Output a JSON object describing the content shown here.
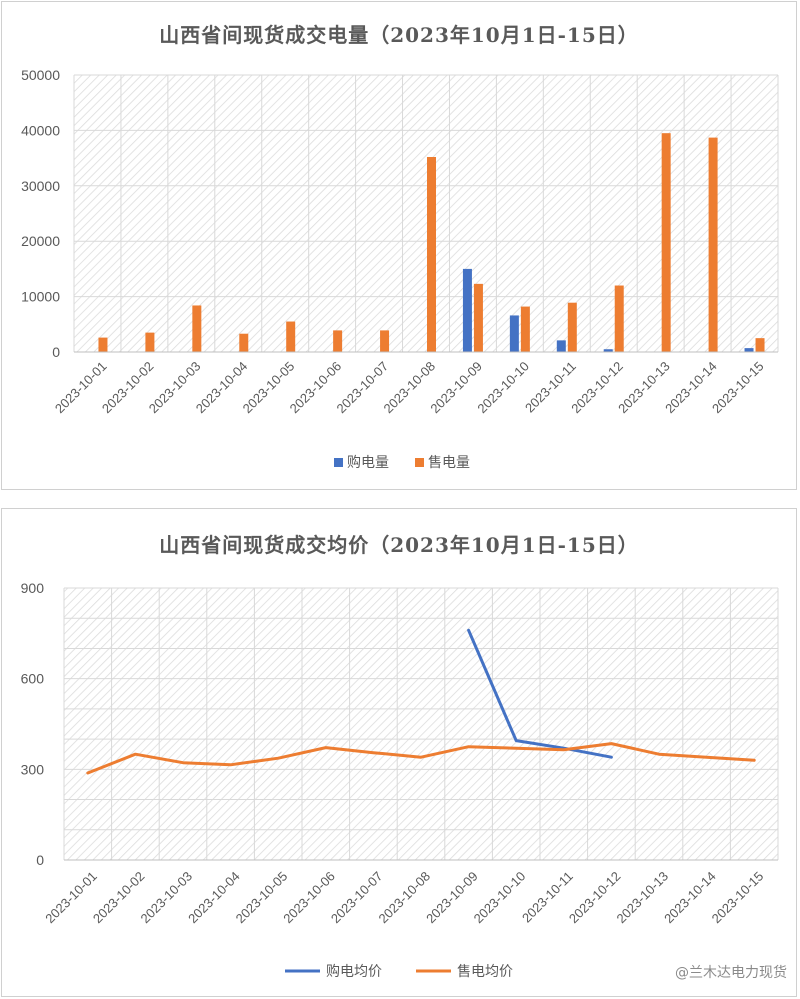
{
  "colors": {
    "buy": "#4472c4",
    "sell": "#ed7d31",
    "grid": "#d9d9d9",
    "text": "#595959"
  },
  "watermark": "@兰木达电力现货",
  "chart_data": [
    {
      "type": "bar",
      "title": "山西省间现货成交电量（2023年10月1日-15日）",
      "categories": [
        "2023-10-01",
        "2023-10-02",
        "2023-10-03",
        "2023-10-04",
        "2023-10-05",
        "2023-10-06",
        "2023-10-07",
        "2023-10-08",
        "2023-10-09",
        "2023-10-10",
        "2023-10-11",
        "2023-10-12",
        "2023-10-13",
        "2023-10-14",
        "2023-10-15"
      ],
      "series": [
        {
          "name": "购电量",
          "values": [
            0,
            0,
            0,
            0,
            0,
            0,
            0,
            0,
            15000,
            6600,
            2100,
            500,
            0,
            0,
            700
          ]
        },
        {
          "name": "售电量",
          "values": [
            2600,
            3500,
            8400,
            3300,
            5500,
            3900,
            3900,
            35200,
            12300,
            8200,
            8900,
            12000,
            39500,
            38700,
            2500
          ]
        }
      ],
      "ylim": [
        0,
        50000
      ],
      "yticks": [
        "0",
        "10000",
        "20000",
        "30000",
        "40000",
        "50000"
      ],
      "grid": true,
      "legend": "bottom"
    },
    {
      "type": "line",
      "title": "山西省间现货成交均价（2023年10月1日-15日）",
      "categories": [
        "2023-10-01",
        "2023-10-02",
        "2023-10-03",
        "2023-10-04",
        "2023-10-05",
        "2023-10-06",
        "2023-10-07",
        "2023-10-08",
        "2023-10-09",
        "2023-10-10",
        "2023-10-11",
        "2023-10-12",
        "2023-10-13",
        "2023-10-14",
        "2023-10-15"
      ],
      "series": [
        {
          "name": "购电均价",
          "values": [
            null,
            null,
            null,
            null,
            null,
            null,
            null,
            null,
            760,
            395,
            370,
            340,
            null,
            null,
            null
          ]
        },
        {
          "name": "售电均价",
          "values": [
            288,
            350,
            322,
            315,
            337,
            372,
            355,
            340,
            375,
            370,
            365,
            385,
            350,
            340,
            330
          ]
        }
      ],
      "ylim": [
        0,
        900
      ],
      "yticks": [
        "0",
        "300",
        "600",
        "900"
      ],
      "grid": true,
      "legend": "bottom"
    }
  ]
}
